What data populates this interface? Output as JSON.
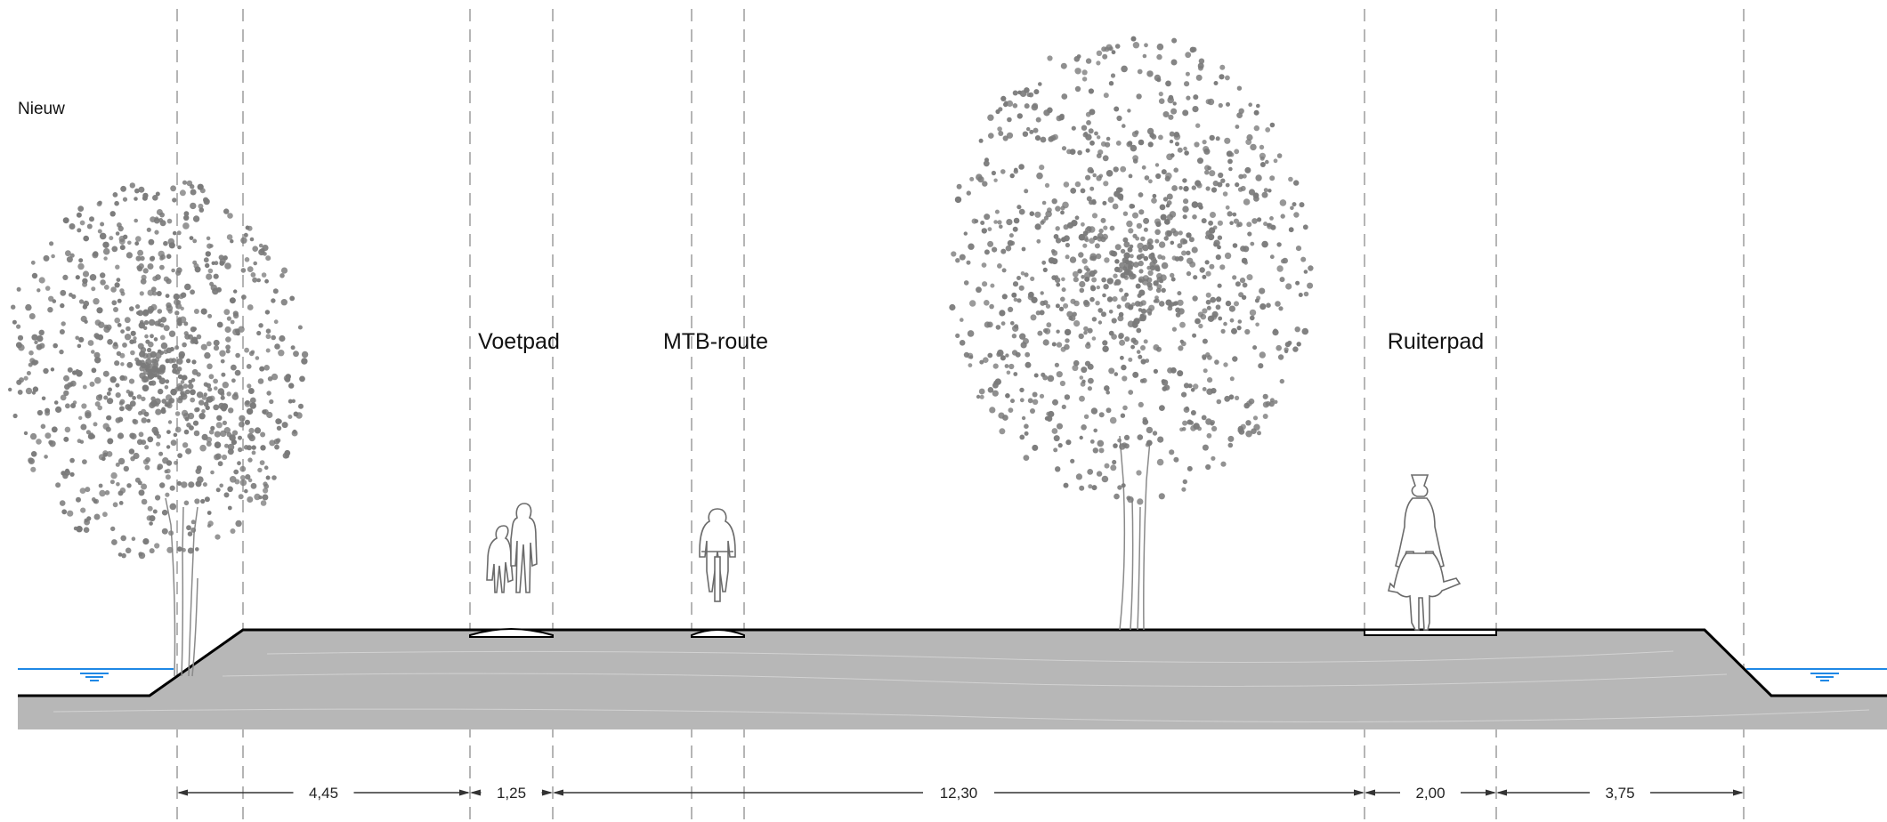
{
  "variant_label": "Nieuw",
  "path_labels": {
    "footpath": "Voetpad",
    "mtb": "MTB-route",
    "bridle": "Ruiterpad"
  },
  "dimensions": [
    "4,45",
    "1,25",
    "12,30",
    "2,00",
    "3,75"
  ],
  "colors": {
    "ground": "#b7b7b7",
    "water": "#1f88e5",
    "foliage": "#7a7a7a",
    "guide_lines": "#b5b5b5",
    "outline": "#000000"
  },
  "icons": [
    "tree-icon",
    "pedestrians-icon",
    "cyclist-icon",
    "horse-rider-icon",
    "water-icon"
  ]
}
